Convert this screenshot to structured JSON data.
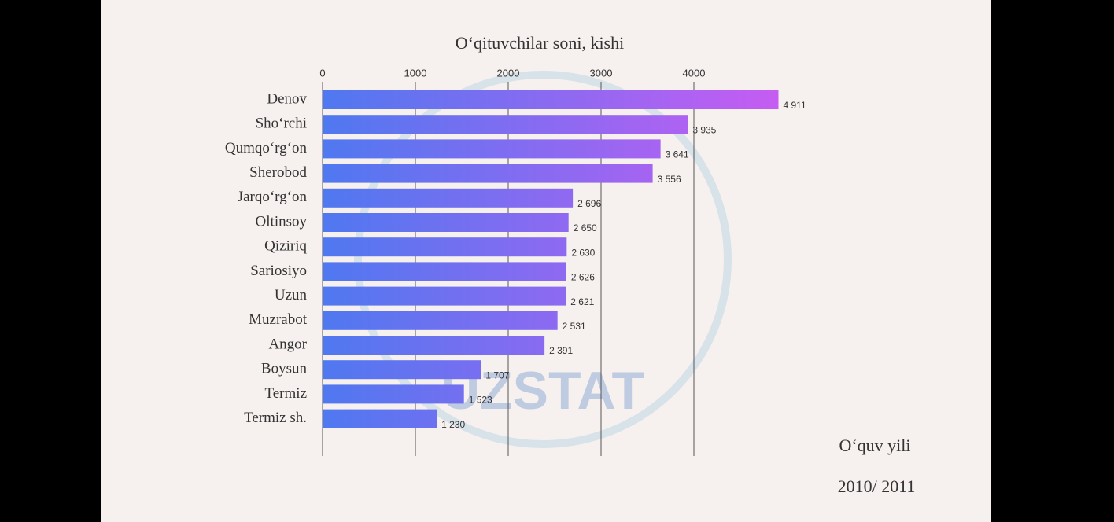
{
  "chart_data": {
    "type": "bar",
    "orientation": "horizontal",
    "title": "O‘qituvchilar soni, kishi",
    "categories": [
      "Denov",
      "Sho‘rchi",
      "Qumqo‘rg‘on",
      "Sherobod",
      "Jarqo‘rg‘on",
      "Oltinsoy",
      "Qiziriq",
      "Sariosiyo",
      "Uzun",
      "Muzrabot",
      "Angor",
      "Boysun",
      "Termiz",
      "Termiz sh."
    ],
    "values": [
      4911,
      3935,
      3641,
      3556,
      2696,
      2650,
      2630,
      2626,
      2621,
      2531,
      2391,
      1707,
      1523,
      1230
    ],
    "value_labels": [
      "4 911",
      "3 935",
      "3 641",
      "3 556",
      "2 696",
      "2 650",
      "2 630",
      "2 626",
      "2 621",
      "2 531",
      "2 391",
      "1 707",
      "1 523",
      "1 230"
    ],
    "colors": [
      "#4f78f0",
      "#c85cf2"
    ],
    "xlim": [
      0,
      5000
    ],
    "xticks": [
      0,
      1000,
      2000,
      3000,
      4000
    ],
    "grid": true,
    "annotations": [
      "O‘quv yili",
      "2010/ 2011"
    ],
    "watermark": "UZSTAT"
  }
}
